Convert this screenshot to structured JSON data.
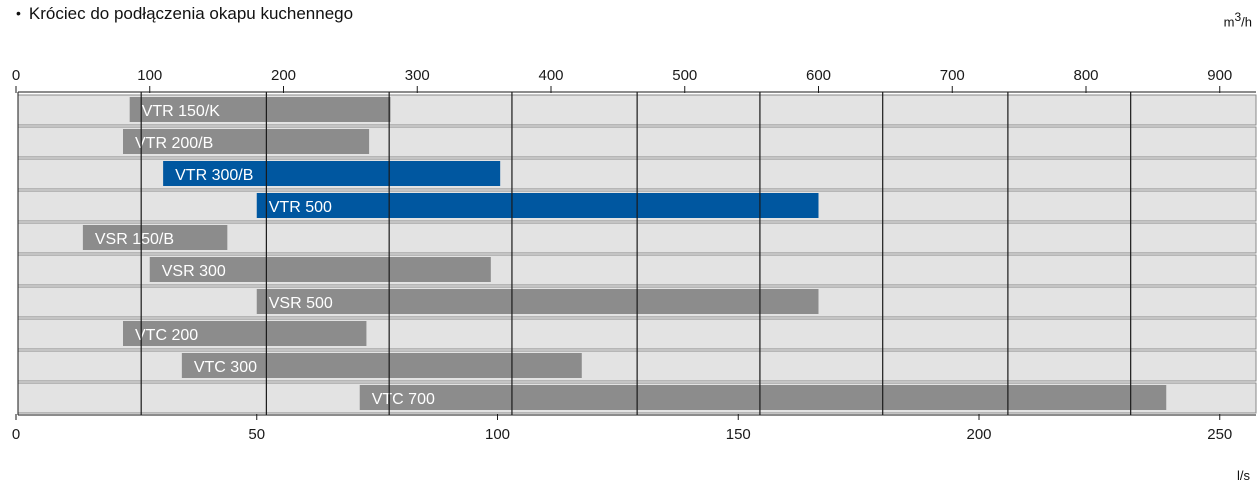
{
  "heading": {
    "bullet": "•",
    "text": "Króciec do podłączenia okapu kuchennego"
  },
  "units": {
    "top_prefix": "m",
    "top_sup": "3",
    "top_suffix": "/h",
    "bottom": "l/s"
  },
  "colors": {
    "row_background": "#e3e3e3",
    "row_border": "#8a8a8a",
    "bar_gray": "#8c8c8c",
    "bar_blue": "#0057a0",
    "gridline": "#1a1a1a",
    "text": "#1a1a1a",
    "bar_label": "#ffffff"
  },
  "chart_data": {
    "type": "bar",
    "orientation": "horizontal",
    "title": "",
    "grid": true,
    "top_axis": {
      "unit": "m3/h",
      "ticks": [
        0,
        100,
        200,
        300,
        400,
        500,
        600,
        700,
        800,
        900
      ],
      "range": [
        0,
        930
      ]
    },
    "bottom_axis": {
      "unit": "l/s",
      "ticks": [
        0,
        50,
        100,
        150,
        200,
        250
      ],
      "range": [
        0,
        258.3
      ]
    },
    "series_highlight_legend": "blue bars = VTR 300/B, VTR 500",
    "bars": [
      {
        "label": "VTR 150/K",
        "start_m3h": 85,
        "end_m3h": 280,
        "color": "gray"
      },
      {
        "label": "VTR 200/B",
        "start_m3h": 80,
        "end_m3h": 264,
        "color": "gray"
      },
      {
        "label": "VTR 300/B",
        "start_m3h": 110,
        "end_m3h": 362,
        "color": "blue"
      },
      {
        "label": "VTR 500",
        "start_m3h": 180,
        "end_m3h": 600,
        "color": "blue"
      },
      {
        "label": "VSR 150/B",
        "start_m3h": 50,
        "end_m3h": 158,
        "color": "gray"
      },
      {
        "label": "VSR 300",
        "start_m3h": 100,
        "end_m3h": 355,
        "color": "gray"
      },
      {
        "label": "VSR 500",
        "start_m3h": 180,
        "end_m3h": 600,
        "color": "gray"
      },
      {
        "label": "VTC 200",
        "start_m3h": 80,
        "end_m3h": 262,
        "color": "gray"
      },
      {
        "label": "VTC 300",
        "start_m3h": 124,
        "end_m3h": 423,
        "color": "gray"
      },
      {
        "label": "VTC 700",
        "start_m3h": 257,
        "end_m3h": 860,
        "color": "gray"
      }
    ]
  }
}
